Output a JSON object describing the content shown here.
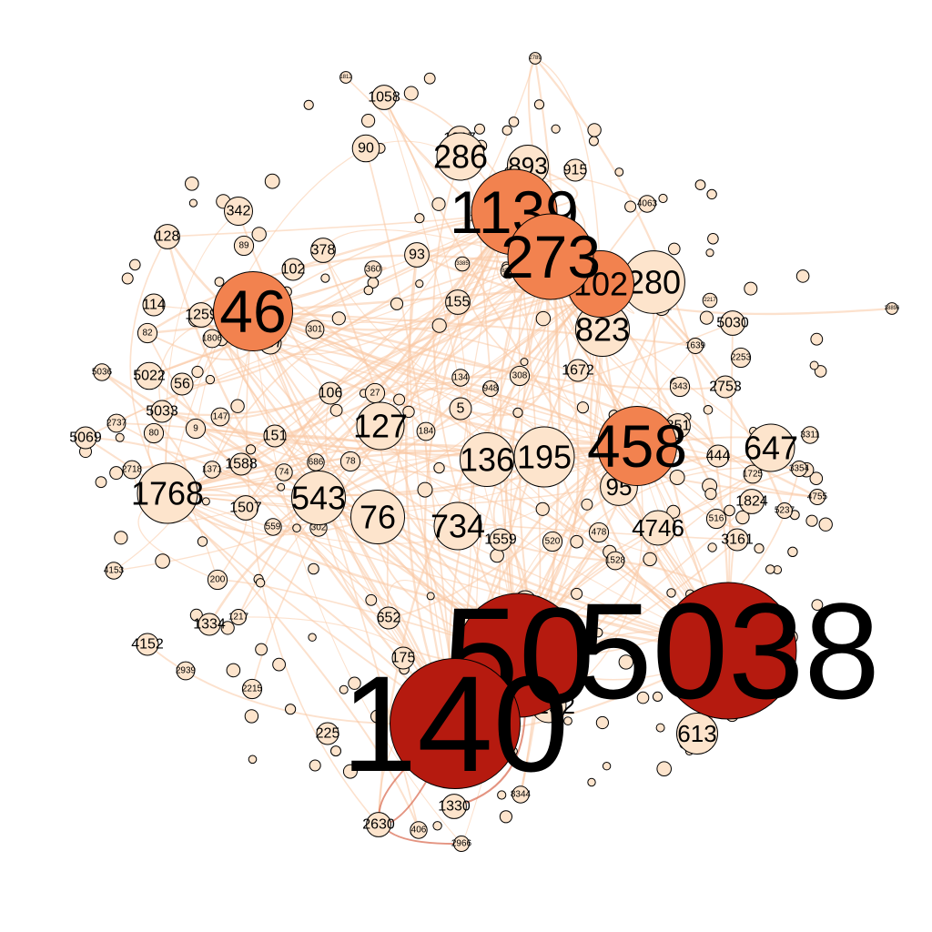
{
  "palette": {
    "edge": "#f9c9a4",
    "edge_strong": "#d9674c",
    "node_light": "#fde4cc",
    "node_mid": "#f59a6e",
    "node_orange": "#f2824f",
    "node_dark": "#b51a0f",
    "outline": "#000000"
  },
  "nodes": [
    {
      "label": "5038",
      "level": "dark",
      "weight": 1.0
    },
    {
      "label": "140",
      "level": "dark",
      "weight": 0.95
    },
    {
      "label": "50",
      "level": "dark",
      "weight": 0.9
    },
    {
      "label": "2789",
      "level": "light",
      "weight": 0.02
    },
    {
      "label": "1812",
      "level": "light",
      "weight": 0.02
    },
    {
      "label": "1058",
      "level": "light",
      "weight": 0.12
    },
    {
      "label": "1817",
      "level": "light",
      "weight": 0.12
    },
    {
      "label": "286",
      "level": "light",
      "weight": 0.3
    },
    {
      "label": "893",
      "level": "light",
      "weight": 0.25
    },
    {
      "label": "915",
      "level": "light",
      "weight": 0.1
    },
    {
      "label": "90",
      "level": "light",
      "weight": 0.14
    },
    {
      "label": "1139",
      "level": "orange",
      "weight": 0.6
    },
    {
      "label": "273",
      "level": "orange",
      "weight": 0.6
    },
    {
      "label": "102",
      "level": "orange",
      "weight": 0.45
    },
    {
      "label": "280",
      "level": "light",
      "weight": 0.42
    },
    {
      "label": "823",
      "level": "light",
      "weight": 0.35
    },
    {
      "label": "4063",
      "level": "light",
      "weight": 0.06
    },
    {
      "label": "342",
      "level": "light",
      "weight": 0.15
    },
    {
      "label": "128",
      "level": "light",
      "weight": 0.12
    },
    {
      "label": "89",
      "level": "light",
      "weight": 0.08
    },
    {
      "label": "378",
      "level": "light",
      "weight": 0.12
    },
    {
      "label": "93",
      "level": "light",
      "weight": 0.12
    },
    {
      "label": "102",
      "level": "light",
      "weight": 0.1
    },
    {
      "label": "360",
      "level": "light",
      "weight": 0.06
    },
    {
      "label": "46",
      "level": "orange",
      "weight": 0.55
    },
    {
      "label": "887",
      "level": "light",
      "weight": 0.1
    },
    {
      "label": "114",
      "level": "light",
      "weight": 0.1
    },
    {
      "label": "1259",
      "level": "light",
      "weight": 0.12
    },
    {
      "label": "155",
      "level": "light",
      "weight": 0.12
    },
    {
      "label": "5030",
      "level": "light",
      "weight": 0.12
    },
    {
      "label": "82",
      "level": "light",
      "weight": 0.08
    },
    {
      "label": "1806",
      "level": "light",
      "weight": 0.07
    },
    {
      "label": "301",
      "level": "light",
      "weight": 0.07
    },
    {
      "label": "2253",
      "level": "light",
      "weight": 0.08
    },
    {
      "label": "5036",
      "level": "light",
      "weight": 0.06
    },
    {
      "label": "5022",
      "level": "light",
      "weight": 0.14
    },
    {
      "label": "56",
      "level": "light",
      "weight": 0.1
    },
    {
      "label": "106",
      "level": "light",
      "weight": 0.1
    },
    {
      "label": "27",
      "level": "light",
      "weight": 0.08
    },
    {
      "label": "134",
      "level": "light",
      "weight": 0.06
    },
    {
      "label": "948",
      "level": "light",
      "weight": 0.05
    },
    {
      "label": "308",
      "level": "light",
      "weight": 0.08
    },
    {
      "label": "1672",
      "level": "light",
      "weight": 0.1
    },
    {
      "label": "343",
      "level": "light",
      "weight": 0.08
    },
    {
      "label": "2753",
      "level": "light",
      "weight": 0.1
    },
    {
      "label": "5",
      "level": "light",
      "weight": 0.1
    },
    {
      "label": "5033",
      "level": "light",
      "weight": 0.1
    },
    {
      "label": "147",
      "level": "light",
      "weight": 0.07
    },
    {
      "label": "127",
      "level": "light",
      "weight": 0.3
    },
    {
      "label": "184",
      "level": "light",
      "weight": 0.07
    },
    {
      "label": "851",
      "level": "light",
      "weight": 0.12
    },
    {
      "label": "2737",
      "level": "light",
      "weight": 0.07
    },
    {
      "label": "80",
      "level": "light",
      "weight": 0.08
    },
    {
      "label": "9",
      "level": "light",
      "weight": 0.08
    },
    {
      "label": "151",
      "level": "light",
      "weight": 0.1
    },
    {
      "label": "5069",
      "level": "light",
      "weight": 0.1
    },
    {
      "label": "458",
      "level": "orange",
      "weight": 0.55
    },
    {
      "label": "647",
      "level": "light",
      "weight": 0.3
    },
    {
      "label": "3311",
      "level": "light",
      "weight": 0.06
    },
    {
      "label": "444",
      "level": "light",
      "weight": 0.1
    },
    {
      "label": "136",
      "level": "light",
      "weight": 0.35
    },
    {
      "label": "195",
      "level": "light",
      "weight": 0.4
    },
    {
      "label": "2718",
      "level": "light",
      "weight": 0.07
    },
    {
      "label": "1371",
      "level": "light",
      "weight": 0.06
    },
    {
      "label": "1588",
      "level": "light",
      "weight": 0.1
    },
    {
      "label": "74",
      "level": "light",
      "weight": 0.06
    },
    {
      "label": "686",
      "level": "light",
      "weight": 0.06
    },
    {
      "label": "78",
      "level": "light",
      "weight": 0.08
    },
    {
      "label": "95",
      "level": "light",
      "weight": 0.22
    },
    {
      "label": "1725",
      "level": "light",
      "weight": 0.07
    },
    {
      "label": "3354",
      "level": "light",
      "weight": 0.05
    },
    {
      "label": "4755",
      "level": "light",
      "weight": 0.05
    },
    {
      "label": "1768",
      "level": "light",
      "weight": 0.4
    },
    {
      "label": "543",
      "level": "light",
      "weight": 0.35
    },
    {
      "label": "1507",
      "level": "light",
      "weight": 0.12
    },
    {
      "label": "76",
      "level": "light",
      "weight": 0.35
    },
    {
      "label": "1824",
      "level": "light",
      "weight": 0.12
    },
    {
      "label": "5237",
      "level": "light",
      "weight": 0.05
    },
    {
      "label": "734",
      "level": "light",
      "weight": 0.3
    },
    {
      "label": "4746",
      "level": "light",
      "weight": 0.2
    },
    {
      "label": "516",
      "level": "light",
      "weight": 0.08
    },
    {
      "label": "1559",
      "level": "light",
      "weight": 0.1
    },
    {
      "label": "520",
      "level": "light",
      "weight": 0.08
    },
    {
      "label": "478",
      "level": "light",
      "weight": 0.08
    },
    {
      "label": "559",
      "level": "light",
      "weight": 0.06
    },
    {
      "label": "302",
      "level": "light",
      "weight": 0.06
    },
    {
      "label": "3161",
      "level": "light",
      "weight": 0.1
    },
    {
      "label": "4153",
      "level": "light",
      "weight": 0.06
    },
    {
      "label": "1528",
      "level": "light",
      "weight": 0.07
    },
    {
      "label": "1217",
      "level": "light",
      "weight": 0.05
    },
    {
      "label": "200",
      "level": "light",
      "weight": 0.08
    },
    {
      "label": "1334",
      "level": "light",
      "weight": 0.1
    },
    {
      "label": "1883",
      "level": "light",
      "weight": 0.1
    },
    {
      "label": "652",
      "level": "light",
      "weight": 0.1
    },
    {
      "label": "4152",
      "level": "light",
      "weight": 0.1
    },
    {
      "label": "175",
      "level": "light",
      "weight": 0.1
    },
    {
      "label": "2939",
      "level": "light",
      "weight": 0.07
    },
    {
      "label": "2215",
      "level": "light",
      "weight": 0.08
    },
    {
      "label": "225",
      "level": "light",
      "weight": 0.1
    },
    {
      "label": "613",
      "level": "light",
      "weight": 0.25
    },
    {
      "label": "6232",
      "level": "light",
      "weight": 0.2
    },
    {
      "label": "1330",
      "level": "light",
      "weight": 0.12
    },
    {
      "label": "8344",
      "level": "light",
      "weight": 0.06
    },
    {
      "label": "2630",
      "level": "light",
      "weight": 0.12
    },
    {
      "label": "406",
      "level": "light",
      "weight": 0.06
    },
    {
      "label": "2966",
      "level": "light",
      "weight": 0.05
    },
    {
      "label": "38896",
      "level": "light",
      "weight": 0.02
    },
    {
      "label": "1031",
      "level": "light",
      "weight": 0.05
    },
    {
      "label": "1939",
      "level": "light",
      "weight": 0.05
    },
    {
      "label": "1639",
      "level": "light",
      "weight": 0.05
    },
    {
      "label": "2217",
      "level": "light",
      "weight": 0.04
    },
    {
      "label": "8391",
      "level": "light",
      "weight": 0.04
    },
    {
      "label": "3385",
      "level": "light",
      "weight": 0.04
    }
  ]
}
